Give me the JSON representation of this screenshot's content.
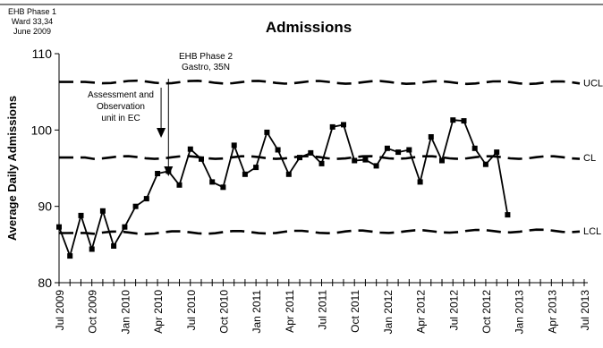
{
  "chart_data": {
    "type": "line",
    "title": "Admissions",
    "ylabel": "Average Daily Admissions",
    "xlabel": "",
    "ylim": [
      80,
      110
    ],
    "yticks": [
      80,
      90,
      100,
      110
    ],
    "grid": false,
    "xtick_labels": [
      "Jul 2009",
      "Oct 2009",
      "Jan 2010",
      "Apr 2010",
      "Jul 2010",
      "Oct 2010",
      "Jan 2011",
      "Apr 2011",
      "Jul 2011",
      "Oct 2011",
      "Jan 2012",
      "Apr 2012",
      "Jul 2012",
      "Oct 2012",
      "Jan 2013",
      "Apr 2013",
      "Jul 2013"
    ],
    "x_start": "2009-07",
    "months": [
      "2009-07",
      "2009-08",
      "2009-09",
      "2009-10",
      "2009-11",
      "2009-12",
      "2010-01",
      "2010-02",
      "2010-03",
      "2010-04",
      "2010-05",
      "2010-06",
      "2010-07",
      "2010-08",
      "2010-09",
      "2010-10",
      "2010-11",
      "2010-12",
      "2011-01",
      "2011-02",
      "2011-03",
      "2011-04",
      "2011-05",
      "2011-06",
      "2011-07",
      "2011-08",
      "2011-09",
      "2011-10",
      "2011-11",
      "2011-12",
      "2012-01",
      "2012-02",
      "2012-03",
      "2012-04",
      "2012-05",
      "2012-06",
      "2012-07",
      "2012-08",
      "2012-09",
      "2012-10",
      "2012-11",
      "2012-12"
    ],
    "series": [
      {
        "values": [
          87.3,
          83.5,
          88.8,
          84.4,
          89.4,
          84.8,
          87.3,
          90.0,
          91.0,
          94.3,
          94.6,
          92.8,
          97.5,
          96.2,
          93.2,
          92.5,
          98.0,
          94.2,
          95.1,
          99.7,
          97.4,
          94.2,
          96.4,
          97.0,
          95.6,
          100.4,
          100.7,
          96.0,
          96.1,
          95.3,
          97.6,
          97.1,
          97.4,
          93.2,
          99.1,
          96.0,
          101.3,
          101.2,
          97.6,
          95.5,
          97.1,
          88.9
        ]
      }
    ],
    "control_lines": [
      {
        "label": "UCL",
        "y_start": 106.3,
        "y_end": 106.2
      },
      {
        "label": "CL",
        "y_start": 96.4,
        "y_end": 96.4
      },
      {
        "label": "LCL",
        "y_start": 86.5,
        "y_end": 86.8
      }
    ],
    "annotations": [
      {
        "lines": [
          "EHB Phase 1",
          "Ward 33,34",
          "June 2009"
        ],
        "month": "2009-06"
      },
      {
        "lines": [
          "EHB Phase 2",
          "Gastro, 35N"
        ],
        "month": "2010-05"
      },
      {
        "lines": [
          "Assessment and",
          "Observation",
          "unit in EC"
        ],
        "month": "2010-04"
      }
    ]
  }
}
